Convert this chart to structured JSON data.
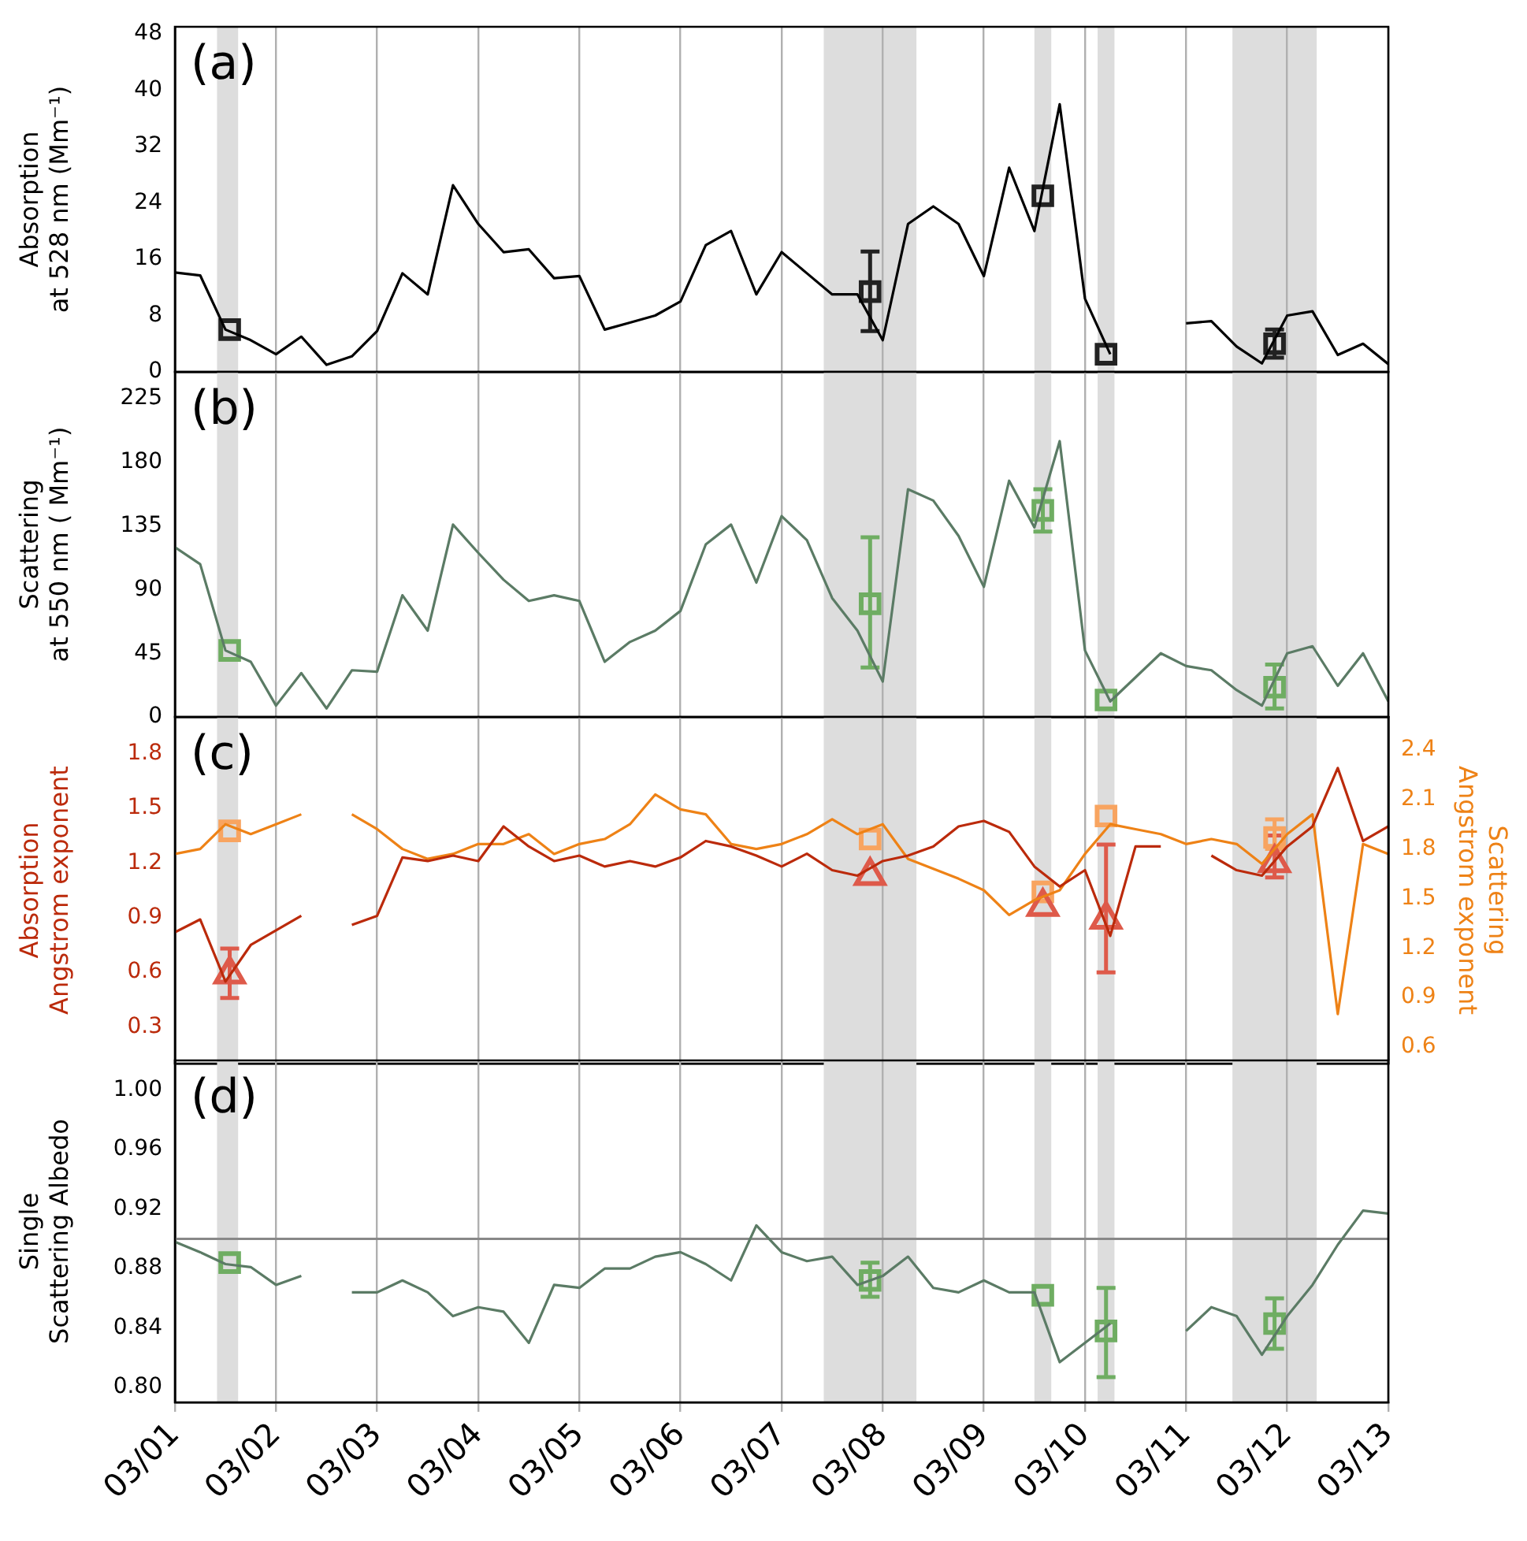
{
  "chart_data": [
    {
      "type": "line",
      "annotations": [
        "(a)"
      ],
      "ylabel": "Absorption\nat 528 nm (Mm⁻¹)",
      "xlim": [
        "--03-01",
        "--03-13"
      ],
      "xticks": [
        {
          "value": "--03-01",
          "label": "03/01"
        },
        {
          "value": "--03-02",
          "label": "03/02"
        },
        {
          "value": "--03-03",
          "label": "03/03"
        },
        {
          "value": "--03-04",
          "label": "03/04"
        },
        {
          "value": "--03-05",
          "label": "03/05"
        },
        {
          "value": "--03-06",
          "label": "03/06"
        },
        {
          "value": "--03-07",
          "label": "03/07"
        },
        {
          "value": "--03-08",
          "label": "03/08"
        },
        {
          "value": "--03-09",
          "label": "03/09"
        },
        {
          "value": "--03-10",
          "label": "03/10"
        },
        {
          "value": "--03-11",
          "label": "03/11"
        },
        {
          "value": "--03-12",
          "label": "03/12"
        },
        {
          "value": "--03-13",
          "label": "03/13"
        }
      ],
      "ylim": [
        0,
        49
      ],
      "yticks": [
        0,
        8,
        16,
        24,
        32,
        40,
        48
      ],
      "grid": "x",
      "tick_labels": "y",
      "legend": false,
      "marker": "none",
      "bands": [
        {
          "axis": "x",
          "from": "--03-01T10:00",
          "to": "--03-01T15:00",
          "color": "#dddddd"
        },
        {
          "axis": "x",
          "from": "--03-07T10:00",
          "to": "--03-08T08:00",
          "color": "#dddddd"
        },
        {
          "axis": "x",
          "from": "--03-09T12:00",
          "to": "--03-09T16:00",
          "color": "#dddddd"
        },
        {
          "axis": "x",
          "from": "--03-10T03:00",
          "to": "--03-10T07:00",
          "color": "#dddddd"
        },
        {
          "axis": "x",
          "from": "--03-11T11:00",
          "to": "--03-12T07:00",
          "color": "#dddddd"
        }
      ],
      "x": [
        "--03-01T00:00",
        "--03-01T06:00",
        "--03-01T12:00",
        "--03-01T18:00",
        "--03-02T00:00",
        "--03-02T06:00",
        "--03-02T12:00",
        "--03-02T18:00",
        "--03-03T00:00",
        "--03-03T06:00",
        "--03-03T12:00",
        "--03-03T18:00",
        "--03-04T00:00",
        "--03-04T06:00",
        "--03-04T12:00",
        "--03-04T18:00",
        "--03-05T00:00",
        "--03-05T06:00",
        "--03-05T12:00",
        "--03-05T18:00",
        "--03-06T00:00",
        "--03-06T06:00",
        "--03-06T12:00",
        "--03-06T18:00",
        "--03-07T00:00",
        "--03-07T06:00",
        "--03-07T12:00",
        "--03-07T18:00",
        "--03-08T00:00",
        "--03-08T06:00",
        "--03-08T12:00",
        "--03-08T18:00",
        "--03-09T00:00",
        "--03-09T06:00",
        "--03-09T12:00",
        "--03-09T18:00",
        "--03-10T00:00",
        "--03-10T06:00",
        "--03-10T12:00",
        "--03-10T18:00",
        "--03-11T00:00",
        "--03-11T06:00",
        "--03-11T12:00",
        "--03-11T18:00",
        "--03-12T00:00",
        "--03-12T06:00",
        "--03-12T12:00",
        "--03-12T18:00",
        "--03-13T00:00"
      ],
      "series": [
        {
          "color": "#000000",
          "values": [
            14.1,
            13.7,
            6,
            4.5,
            2.5,
            5,
            1,
            2.2,
            5.8,
            14,
            11,
            26.5,
            21,
            17,
            17.4,
            13.3,
            13.6,
            6,
            7,
            8,
            10,
            18,
            20,
            11,
            17,
            14,
            11,
            11,
            4.5,
            21,
            23.5,
            21,
            13.6,
            29,
            20,
            38,
            10.4,
            2.5,
            null,
            null,
            6.9,
            7.2,
            3.6,
            1.2,
            8,
            8.6,
            2.4,
            4,
            1.1
          ]
        },
        {
          "type": "scatter",
          "marker": "square",
          "color": "#222222",
          "x": [
            "--03-01T13:00",
            "--03-07T21:00",
            "--03-09T14:00",
            "--03-10T05:00",
            "--03-11T21:00"
          ],
          "values": [
            6,
            11.4,
            25,
            2.5,
            4
          ],
          "errors": [
            null,
            [
              5.8,
              17.1
            ],
            null,
            null,
            [
              2,
              6
            ]
          ]
        }
      ]
    },
    {
      "type": "line",
      "annotations": [
        "(b)"
      ],
      "ylabel": "Scattering\nat 550 nm ( Mm⁻¹)",
      "xlim": [
        "--03-01",
        "--03-13"
      ],
      "xticks": [
        {
          "value": "--03-01",
          "label": "03/01"
        },
        {
          "value": "--03-02",
          "label": "03/02"
        },
        {
          "value": "--03-03",
          "label": "03/03"
        },
        {
          "value": "--03-04",
          "label": "03/04"
        },
        {
          "value": "--03-05",
          "label": "03/05"
        },
        {
          "value": "--03-06",
          "label": "03/06"
        },
        {
          "value": "--03-07",
          "label": "03/07"
        },
        {
          "value": "--03-08",
          "label": "03/08"
        },
        {
          "value": "--03-09",
          "label": "03/09"
        },
        {
          "value": "--03-10",
          "label": "03/10"
        },
        {
          "value": "--03-11",
          "label": "03/11"
        },
        {
          "value": "--03-12",
          "label": "03/12"
        },
        {
          "value": "--03-13",
          "label": "03/13"
        }
      ],
      "ylim": [
        0,
        244
      ],
      "yticks": [
        0,
        45,
        90,
        135,
        180,
        225
      ],
      "grid": "x",
      "tick_labels": "y",
      "legend": false,
      "marker": "none",
      "bands": [
        {
          "axis": "x",
          "from": "--03-01T10:00",
          "to": "--03-01T15:00",
          "color": "#dddddd"
        },
        {
          "axis": "x",
          "from": "--03-07T10:00",
          "to": "--03-08T08:00",
          "color": "#dddddd"
        },
        {
          "axis": "x",
          "from": "--03-09T12:00",
          "to": "--03-09T16:00",
          "color": "#dddddd"
        },
        {
          "axis": "x",
          "from": "--03-10T03:00",
          "to": "--03-10T07:00",
          "color": "#dddddd"
        },
        {
          "axis": "x",
          "from": "--03-11T11:00",
          "to": "--03-12T07:00",
          "color": "#dddddd"
        }
      ],
      "x": [
        "--03-01T00:00",
        "--03-01T06:00",
        "--03-01T12:00",
        "--03-01T18:00",
        "--03-02T00:00",
        "--03-02T06:00",
        "--03-02T12:00",
        "--03-02T18:00",
        "--03-03T00:00",
        "--03-03T06:00",
        "--03-03T12:00",
        "--03-03T18:00",
        "--03-04T00:00",
        "--03-04T06:00",
        "--03-04T12:00",
        "--03-04T18:00",
        "--03-05T00:00",
        "--03-05T06:00",
        "--03-05T12:00",
        "--03-05T18:00",
        "--03-06T00:00",
        "--03-06T06:00",
        "--03-06T12:00",
        "--03-06T18:00",
        "--03-07T00:00",
        "--03-07T06:00",
        "--03-07T12:00",
        "--03-07T18:00",
        "--03-08T00:00",
        "--03-08T06:00",
        "--03-08T12:00",
        "--03-08T18:00",
        "--03-09T00:00",
        "--03-09T06:00",
        "--03-09T12:00",
        "--03-09T18:00",
        "--03-10T00:00",
        "--03-10T06:00",
        "--03-10T12:00",
        "--03-10T18:00",
        "--03-11T00:00",
        "--03-11T06:00",
        "--03-11T12:00",
        "--03-11T18:00",
        "--03-12T00:00",
        "--03-12T06:00",
        "--03-12T12:00",
        "--03-12T18:00",
        "--03-13T00:00"
      ],
      "series": [
        {
          "color": "#5b7b65",
          "values": [
            120,
            108,
            47,
            39,
            8,
            31,
            6,
            33,
            32,
            86,
            61,
            136,
            116,
            97,
            82,
            86,
            82,
            39,
            53,
            61,
            75,
            122,
            136,
            95,
            142,
            125,
            84,
            61,
            25,
            161,
            153,
            128,
            92,
            167,
            134,
            195,
            47,
            11,
            28,
            45,
            36,
            33,
            19,
            8,
            45,
            50,
            22,
            45,
            11
          ]
        },
        {
          "type": "scatter",
          "marker": "square",
          "color": "#6fad62",
          "x": [
            "--03-01T13:00",
            "--03-07T21:00",
            "--03-09T14:00",
            "--03-10T05:00",
            "--03-11T21:00"
          ],
          "values": [
            47,
            80,
            146,
            12,
            21
          ],
          "errors": [
            null,
            [
              35,
              127
            ],
            [
              131,
              161
            ],
            null,
            [
              6,
              37
            ]
          ]
        }
      ]
    },
    {
      "type": "line",
      "annotations": [
        "(c)"
      ],
      "ylabel": "Absorption\nAngstrom exponent",
      "y2label": "Scattering\nAngstrom exponent",
      "xlim": [
        "--03-01",
        "--03-13"
      ],
      "xticks": [
        {
          "value": "--03-01",
          "label": "03/01"
        },
        {
          "value": "--03-02",
          "label": "03/02"
        },
        {
          "value": "--03-03",
          "label": "03/03"
        },
        {
          "value": "--03-04",
          "label": "03/04"
        },
        {
          "value": "--03-05",
          "label": "03/05"
        },
        {
          "value": "--03-06",
          "label": "03/06"
        },
        {
          "value": "--03-07",
          "label": "03/07"
        },
        {
          "value": "--03-08",
          "label": "03/08"
        },
        {
          "value": "--03-09",
          "label": "03/09"
        },
        {
          "value": "--03-10",
          "label": "03/10"
        },
        {
          "value": "--03-11",
          "label": "03/11"
        },
        {
          "value": "--03-12",
          "label": "03/12"
        },
        {
          "value": "--03-13",
          "label": "03/13"
        }
      ],
      "ylim": [
        0.1,
        2.0
      ],
      "yticks": [
        0.3,
        0.6,
        0.9,
        1.2,
        1.5,
        1.8
      ],
      "y2lim": [
        0.5,
        2.6
      ],
      "y2ticks": [
        0.6,
        0.9,
        1.2,
        1.5,
        1.8,
        2.1,
        2.4
      ],
      "grid": "x",
      "tick_labels": "y",
      "legend": false,
      "marker": "none",
      "bands": [
        {
          "axis": "x",
          "from": "--03-01T10:00",
          "to": "--03-01T15:00",
          "color": "#dddddd"
        },
        {
          "axis": "x",
          "from": "--03-07T10:00",
          "to": "--03-08T08:00",
          "color": "#dddddd"
        },
        {
          "axis": "x",
          "from": "--03-09T12:00",
          "to": "--03-09T16:00",
          "color": "#dddddd"
        },
        {
          "axis": "x",
          "from": "--03-10T03:00",
          "to": "--03-10T07:00",
          "color": "#dddddd"
        },
        {
          "axis": "x",
          "from": "--03-11T11:00",
          "to": "--03-12T07:00",
          "color": "#dddddd"
        }
      ],
      "x": [
        "--03-01T00:00",
        "--03-01T06:00",
        "--03-01T12:00",
        "--03-01T18:00",
        "--03-02T00:00",
        "--03-02T06:00",
        "--03-02T12:00",
        "--03-02T18:00",
        "--03-03T00:00",
        "--03-03T06:00",
        "--03-03T12:00",
        "--03-03T18:00",
        "--03-04T00:00",
        "--03-04T06:00",
        "--03-04T12:00",
        "--03-04T18:00",
        "--03-05T00:00",
        "--03-05T06:00",
        "--03-05T12:00",
        "--03-05T18:00",
        "--03-06T00:00",
        "--03-06T06:00",
        "--03-06T12:00",
        "--03-06T18:00",
        "--03-07T00:00",
        "--03-07T06:00",
        "--03-07T12:00",
        "--03-07T18:00",
        "--03-08T00:00",
        "--03-08T06:00",
        "--03-08T12:00",
        "--03-08T18:00",
        "--03-09T00:00",
        "--03-09T06:00",
        "--03-09T12:00",
        "--03-09T18:00",
        "--03-10T00:00",
        "--03-10T06:00",
        "--03-10T12:00",
        "--03-10T18:00",
        "--03-11T00:00",
        "--03-11T06:00",
        "--03-11T12:00",
        "--03-11T18:00",
        "--03-12T00:00",
        "--03-12T06:00",
        "--03-12T12:00",
        "--03-12T18:00",
        "--03-13T00:00"
      ],
      "series": [
        {
          "color": "#bb2a0b",
          "values": [
            0.82,
            0.89,
            0.55,
            0.75,
            0.83,
            0.91,
            null,
            0.86,
            0.91,
            1.23,
            1.21,
            1.24,
            1.21,
            1.4,
            1.29,
            1.21,
            1.24,
            1.18,
            1.21,
            1.18,
            1.23,
            1.32,
            1.29,
            1.24,
            1.18,
            1.25,
            1.16,
            1.13,
            1.21,
            1.24,
            1.29,
            1.4,
            1.43,
            1.37,
            1.18,
            1.07,
            1.16,
            0.8,
            1.29,
            1.29,
            null,
            1.24,
            1.16,
            1.13,
            1.29,
            1.4,
            1.72,
            1.32,
            1.4
          ]
        },
        {
          "axis": "y2",
          "color": "#ee8216",
          "values": [
            1.77,
            1.8,
            1.95,
            1.89,
            1.95,
            2.01,
            null,
            2.01,
            1.92,
            1.8,
            1.74,
            1.77,
            1.83,
            1.83,
            1.89,
            1.77,
            1.83,
            1.86,
            1.95,
            2.13,
            2.04,
            2.01,
            1.83,
            1.8,
            1.83,
            1.89,
            1.98,
            1.89,
            1.95,
            1.74,
            1.68,
            1.62,
            1.55,
            1.4,
            1.49,
            1.55,
            1.77,
            1.95,
            1.92,
            1.89,
            1.83,
            1.86,
            1.83,
            1.71,
            1.89,
            2.01,
            0.8,
            1.83,
            1.77
          ]
        },
        {
          "type": "scatter",
          "marker": "triangle",
          "color": "#de5a4a",
          "x": [
            "--03-01T13:00",
            "--03-07T21:00",
            "--03-09T14:00",
            "--03-10T05:00",
            "--03-11T21:00"
          ],
          "values": [
            0.59,
            1.13,
            0.96,
            0.89,
            1.2
          ],
          "errors": [
            [
              0.46,
              0.73
            ],
            null,
            null,
            [
              0.6,
              1.3
            ],
            [
              1.12,
              1.35
            ]
          ]
        },
        {
          "type": "scatter",
          "axis": "y2",
          "marker": "square",
          "color": "#f8a460",
          "x": [
            "--03-01T13:00",
            "--03-07T21:00",
            "--03-09T14:00",
            "--03-10T05:00",
            "--03-11T21:00"
          ],
          "values": [
            1.91,
            1.86,
            1.54,
            2.0,
            1.87
          ],
          "errors": [
            null,
            null,
            null,
            null,
            [
              1.8,
              1.98
            ]
          ]
        }
      ]
    },
    {
      "type": "line",
      "annotations": [
        "(d)"
      ],
      "ylabel": "Single\nScattering Albedo",
      "xlim": [
        "--03-01",
        "--03-13"
      ],
      "xticks": [
        {
          "value": "--03-01",
          "label": "03/01"
        },
        {
          "value": "--03-02",
          "label": "03/02"
        },
        {
          "value": "--03-03",
          "label": "03/03"
        },
        {
          "value": "--03-04",
          "label": "03/04"
        },
        {
          "value": "--03-05",
          "label": "03/05"
        },
        {
          "value": "--03-06",
          "label": "03/06"
        },
        {
          "value": "--03-07",
          "label": "03/07"
        },
        {
          "value": "--03-08",
          "label": "03/08"
        },
        {
          "value": "--03-09",
          "label": "03/09"
        },
        {
          "value": "--03-10",
          "label": "03/10"
        },
        {
          "value": "--03-11",
          "label": "03/11"
        },
        {
          "value": "--03-12",
          "label": "03/12"
        },
        {
          "value": "--03-13",
          "label": "03/13"
        }
      ],
      "ylim": [
        0.79,
        1.02
      ],
      "yticks": [
        {
          "value": 0.8,
          "label": "0.80"
        },
        {
          "value": 0.84,
          "label": "0.84"
        },
        {
          "value": 0.88,
          "label": "0.88"
        },
        {
          "value": 0.92,
          "label": "0.92"
        },
        {
          "value": 0.96,
          "label": "0.96"
        },
        {
          "value": 1.0,
          "label": "1.00"
        }
      ],
      "grid": "x",
      "legend": false,
      "marker": "none",
      "ref_lines": [
        {
          "axis": "y",
          "value": 0.9,
          "color": "#888888"
        }
      ],
      "bands": [
        {
          "axis": "x",
          "from": "--03-01T10:00",
          "to": "--03-01T15:00",
          "color": "#dddddd"
        },
        {
          "axis": "x",
          "from": "--03-07T10:00",
          "to": "--03-08T08:00",
          "color": "#dddddd"
        },
        {
          "axis": "x",
          "from": "--03-09T12:00",
          "to": "--03-09T16:00",
          "color": "#dddddd"
        },
        {
          "axis": "x",
          "from": "--03-10T03:00",
          "to": "--03-10T07:00",
          "color": "#dddddd"
        },
        {
          "axis": "x",
          "from": "--03-11T11:00",
          "to": "--03-12T07:00",
          "color": "#dddddd"
        }
      ],
      "x": [
        "--03-01T00:00",
        "--03-01T06:00",
        "--03-01T12:00",
        "--03-01T18:00",
        "--03-02T00:00",
        "--03-02T06:00",
        "--03-02T12:00",
        "--03-02T18:00",
        "--03-03T00:00",
        "--03-03T06:00",
        "--03-03T12:00",
        "--03-03T18:00",
        "--03-04T00:00",
        "--03-04T06:00",
        "--03-04T12:00",
        "--03-04T18:00",
        "--03-05T00:00",
        "--03-05T06:00",
        "--03-05T12:00",
        "--03-05T18:00",
        "--03-06T00:00",
        "--03-06T06:00",
        "--03-06T12:00",
        "--03-06T18:00",
        "--03-07T00:00",
        "--03-07T06:00",
        "--03-07T12:00",
        "--03-07T18:00",
        "--03-08T00:00",
        "--03-08T06:00",
        "--03-08T12:00",
        "--03-08T18:00",
        "--03-09T00:00",
        "--03-09T06:00",
        "--03-09T12:00",
        "--03-09T18:00",
        "--03-10T00:00",
        "--03-10T06:00",
        "--03-10T12:00",
        "--03-10T18:00",
        "--03-11T00:00",
        "--03-11T06:00",
        "--03-11T12:00",
        "--03-11T18:00",
        "--03-12T00:00",
        "--03-12T06:00",
        "--03-12T12:00",
        "--03-12T18:00",
        "--03-13T00:00"
      ],
      "series": [
        {
          "color": "#5b7b65",
          "values": [
            0.898,
            0.891,
            0.883,
            0.881,
            0.869,
            0.875,
            null,
            0.864,
            0.864,
            0.872,
            0.864,
            0.848,
            0.854,
            0.851,
            0.83,
            0.869,
            0.867,
            0.88,
            0.88,
            0.888,
            0.891,
            0.883,
            0.872,
            0.909,
            0.891,
            0.885,
            0.888,
            0.869,
            0.875,
            0.888,
            0.867,
            0.864,
            0.872,
            0.864,
            0.864,
            0.817,
            0.83,
            0.843,
            null,
            null,
            0.838,
            0.854,
            0.848,
            0.822,
            0.848,
            0.869,
            0.896,
            0.919,
            0.917
          ]
        },
        {
          "type": "scatter",
          "marker": "square",
          "color": "#6fad62",
          "x": [
            "--03-01T13:00",
            "--03-07T21:00",
            "--03-09T14:00",
            "--03-10T05:00",
            "--03-11T21:00"
          ],
          "values": [
            0.884,
            0.872,
            0.862,
            0.838,
            0.843
          ],
          "errors": [
            null,
            [
              0.861,
              0.884
            ],
            null,
            [
              0.807,
              0.867
            ],
            [
              0.826,
              0.86
            ]
          ]
        }
      ]
    }
  ]
}
